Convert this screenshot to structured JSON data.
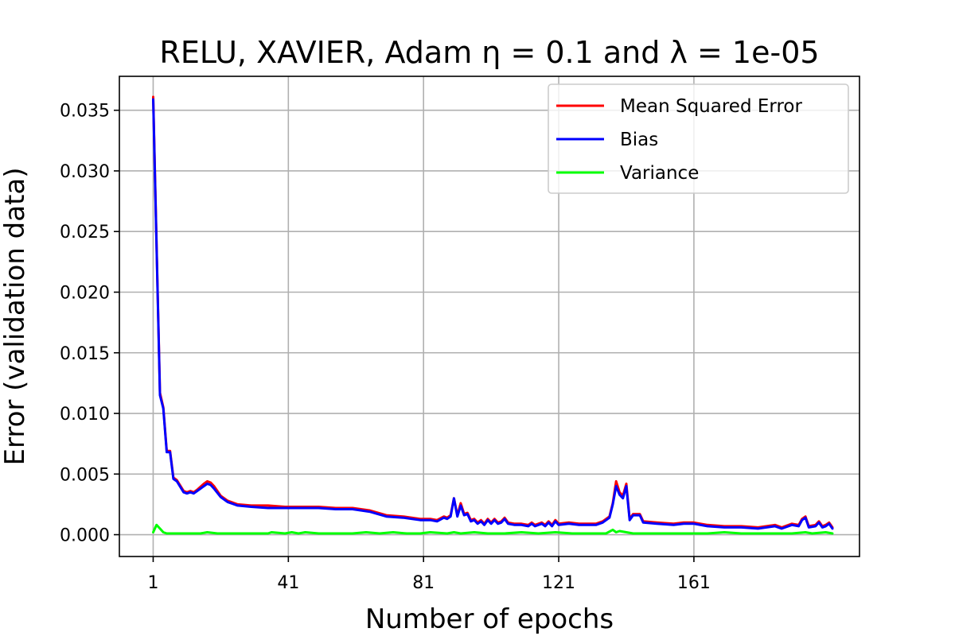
{
  "chart_data": {
    "type": "line",
    "title": "RELU, XAVIER, Adam η = 0.1 and λ = 1e-05",
    "xlabel": "Number of epochs",
    "ylabel": "Error (validation data)",
    "xlim": [
      -9,
      210
    ],
    "ylim": [
      -0.0018,
      0.0378
    ],
    "xticks": [
      1,
      41,
      81,
      121,
      161
    ],
    "yticks": [
      0.0,
      0.005,
      0.01,
      0.015,
      0.02,
      0.025,
      0.03,
      0.035
    ],
    "ytick_labels": [
      "0.000",
      "0.005",
      "0.010",
      "0.015",
      "0.020",
      "0.025",
      "0.030",
      "0.035"
    ],
    "grid": true,
    "legend": "top-right",
    "series": [
      {
        "name": "Mean Squared Error",
        "color": "#ff0000",
        "points": [
          [
            1,
            0.0361
          ],
          [
            3,
            0.0117
          ],
          [
            4,
            0.0105
          ],
          [
            5,
            0.0069
          ],
          [
            6,
            0.0069
          ],
          [
            7,
            0.0047
          ],
          [
            8,
            0.0045
          ],
          [
            10,
            0.0036
          ],
          [
            11,
            0.0035
          ],
          [
            12,
            0.0036
          ],
          [
            13,
            0.0035
          ],
          [
            14,
            0.0037
          ],
          [
            16,
            0.0042
          ],
          [
            17,
            0.0044
          ],
          [
            18,
            0.0043
          ],
          [
            19,
            0.004
          ],
          [
            21,
            0.0032
          ],
          [
            23,
            0.0028
          ],
          [
            26,
            0.0025
          ],
          [
            30,
            0.0024
          ],
          [
            35,
            0.0024
          ],
          [
            40,
            0.0023
          ],
          [
            45,
            0.0023
          ],
          [
            50,
            0.0023
          ],
          [
            55,
            0.0022
          ],
          [
            60,
            0.0022
          ],
          [
            65,
            0.002
          ],
          [
            70,
            0.0016
          ],
          [
            75,
            0.0015
          ],
          [
            80,
            0.0013
          ],
          [
            83,
            0.0013
          ],
          [
            85,
            0.0012
          ],
          [
            87,
            0.0015
          ],
          [
            88,
            0.0014
          ],
          [
            89,
            0.0016
          ],
          [
            90,
            0.003
          ],
          [
            91,
            0.0016
          ],
          [
            92,
            0.0026
          ],
          [
            93,
            0.0017
          ],
          [
            94,
            0.0018
          ],
          [
            95,
            0.0012
          ],
          [
            96,
            0.0013
          ],
          [
            97,
            0.001
          ],
          [
            98,
            0.0012
          ],
          [
            99,
            0.0009
          ],
          [
            100,
            0.0013
          ],
          [
            101,
            0.001
          ],
          [
            102,
            0.0013
          ],
          [
            103,
            0.001
          ],
          [
            104,
            0.0011
          ],
          [
            105,
            0.0014
          ],
          [
            106,
            0.001
          ],
          [
            108,
            0.0009
          ],
          [
            110,
            0.0009
          ],
          [
            112,
            0.0008
          ],
          [
            113,
            0.001
          ],
          [
            114,
            0.0008
          ],
          [
            116,
            0.001
          ],
          [
            117,
            0.0008
          ],
          [
            118,
            0.0011
          ],
          [
            119,
            0.0008
          ],
          [
            120,
            0.0012
          ],
          [
            121,
            0.0009
          ],
          [
            124,
            0.001
          ],
          [
            127,
            0.0009
          ],
          [
            130,
            0.0009
          ],
          [
            132,
            0.0009
          ],
          [
            134,
            0.0011
          ],
          [
            136,
            0.0015
          ],
          [
            137,
            0.0026
          ],
          [
            138,
            0.0044
          ],
          [
            139,
            0.0035
          ],
          [
            140,
            0.0032
          ],
          [
            141,
            0.0042
          ],
          [
            142,
            0.0013
          ],
          [
            143,
            0.0017
          ],
          [
            145,
            0.0017
          ],
          [
            146,
            0.0011
          ],
          [
            150,
            0.001
          ],
          [
            155,
            0.0009
          ],
          [
            158,
            0.001
          ],
          [
            161,
            0.001
          ],
          [
            165,
            0.0008
          ],
          [
            170,
            0.0007
          ],
          [
            175,
            0.0007
          ],
          [
            180,
            0.0006
          ],
          [
            185,
            0.0008
          ],
          [
            187,
            0.0006
          ],
          [
            190,
            0.0009
          ],
          [
            192,
            0.0008
          ],
          [
            193,
            0.0013
          ],
          [
            194,
            0.0015
          ],
          [
            195,
            0.0007
          ],
          [
            197,
            0.0008
          ],
          [
            198,
            0.0011
          ],
          [
            199,
            0.0007
          ],
          [
            200,
            0.0008
          ],
          [
            201,
            0.001
          ],
          [
            202,
            0.0006
          ]
        ]
      },
      {
        "name": "Bias",
        "color": "#0000ff",
        "points": [
          [
            1,
            0.0359
          ],
          [
            3,
            0.0115
          ],
          [
            4,
            0.0104
          ],
          [
            5,
            0.0068
          ],
          [
            6,
            0.0068
          ],
          [
            7,
            0.0046
          ],
          [
            8,
            0.0044
          ],
          [
            10,
            0.0035
          ],
          [
            11,
            0.0034
          ],
          [
            12,
            0.0035
          ],
          [
            13,
            0.0034
          ],
          [
            14,
            0.0036
          ],
          [
            16,
            0.004
          ],
          [
            17,
            0.0042
          ],
          [
            18,
            0.0041
          ],
          [
            19,
            0.0038
          ],
          [
            21,
            0.0031
          ],
          [
            23,
            0.0027
          ],
          [
            26,
            0.0024
          ],
          [
            30,
            0.0023
          ],
          [
            35,
            0.0022
          ],
          [
            40,
            0.0022
          ],
          [
            45,
            0.0022
          ],
          [
            50,
            0.0022
          ],
          [
            55,
            0.0021
          ],
          [
            60,
            0.0021
          ],
          [
            65,
            0.0019
          ],
          [
            70,
            0.0015
          ],
          [
            75,
            0.0014
          ],
          [
            80,
            0.0012
          ],
          [
            83,
            0.0012
          ],
          [
            85,
            0.0011
          ],
          [
            87,
            0.0014
          ],
          [
            88,
            0.0013
          ],
          [
            89,
            0.0015
          ],
          [
            90,
            0.003
          ],
          [
            91,
            0.0015
          ],
          [
            92,
            0.0024
          ],
          [
            93,
            0.0016
          ],
          [
            94,
            0.0017
          ],
          [
            95,
            0.0011
          ],
          [
            96,
            0.0012
          ],
          [
            97,
            0.0009
          ],
          [
            98,
            0.0011
          ],
          [
            99,
            0.0008
          ],
          [
            100,
            0.0012
          ],
          [
            101,
            0.0009
          ],
          [
            102,
            0.0012
          ],
          [
            103,
            0.0009
          ],
          [
            104,
            0.001
          ],
          [
            105,
            0.0013
          ],
          [
            106,
            0.0009
          ],
          [
            108,
            0.0008
          ],
          [
            110,
            0.0008
          ],
          [
            112,
            0.0007
          ],
          [
            113,
            0.0009
          ],
          [
            114,
            0.0007
          ],
          [
            116,
            0.0009
          ],
          [
            117,
            0.0007
          ],
          [
            118,
            0.001
          ],
          [
            119,
            0.0007
          ],
          [
            120,
            0.0011
          ],
          [
            121,
            0.0008
          ],
          [
            124,
            0.0009
          ],
          [
            127,
            0.0008
          ],
          [
            130,
            0.0008
          ],
          [
            132,
            0.0008
          ],
          [
            134,
            0.001
          ],
          [
            136,
            0.0014
          ],
          [
            137,
            0.0025
          ],
          [
            138,
            0.004
          ],
          [
            139,
            0.0033
          ],
          [
            140,
            0.003
          ],
          [
            141,
            0.004
          ],
          [
            142,
            0.0012
          ],
          [
            143,
            0.0016
          ],
          [
            145,
            0.0016
          ],
          [
            146,
            0.001
          ],
          [
            150,
            0.0009
          ],
          [
            155,
            0.0008
          ],
          [
            158,
            0.0009
          ],
          [
            161,
            0.0009
          ],
          [
            165,
            0.0007
          ],
          [
            170,
            0.0006
          ],
          [
            175,
            0.0006
          ],
          [
            180,
            0.0005
          ],
          [
            185,
            0.0007
          ],
          [
            187,
            0.0005
          ],
          [
            190,
            0.0008
          ],
          [
            192,
            0.0007
          ],
          [
            193,
            0.0012
          ],
          [
            194,
            0.0014
          ],
          [
            195,
            0.0006
          ],
          [
            197,
            0.0007
          ],
          [
            198,
            0.001
          ],
          [
            199,
            0.0006
          ],
          [
            200,
            0.0007
          ],
          [
            201,
            0.0009
          ],
          [
            202,
            0.0005
          ]
        ]
      },
      {
        "name": "Variance",
        "color": "#00ff00",
        "points": [
          [
            1,
            0.0002
          ],
          [
            2,
            0.0008
          ],
          [
            3,
            0.0005
          ],
          [
            4,
            0.0002
          ],
          [
            5,
            0.0001
          ],
          [
            7,
            0.0001
          ],
          [
            10,
            0.0001
          ],
          [
            13,
            0.0001
          ],
          [
            15,
            0.0001
          ],
          [
            17,
            0.0002
          ],
          [
            20,
            0.0001
          ],
          [
            25,
            0.0001
          ],
          [
            30,
            0.0001
          ],
          [
            35,
            0.0001
          ],
          [
            36,
            0.0002
          ],
          [
            40,
            0.0001
          ],
          [
            42,
            0.0002
          ],
          [
            44,
            0.0001
          ],
          [
            46,
            0.0002
          ],
          [
            50,
            0.0001
          ],
          [
            55,
            0.0001
          ],
          [
            60,
            0.0001
          ],
          [
            64,
            0.0002
          ],
          [
            68,
            0.0001
          ],
          [
            72,
            0.0002
          ],
          [
            76,
            0.0001
          ],
          [
            80,
            0.0001
          ],
          [
            83,
            0.0002
          ],
          [
            88,
            0.0001
          ],
          [
            90,
            0.0002
          ],
          [
            92,
            0.0001
          ],
          [
            96,
            0.0002
          ],
          [
            100,
            0.0001
          ],
          [
            105,
            0.0001
          ],
          [
            110,
            0.0002
          ],
          [
            115,
            0.0001
          ],
          [
            120,
            0.0002
          ],
          [
            125,
            0.0001
          ],
          [
            130,
            0.0001
          ],
          [
            135,
            0.0001
          ],
          [
            137,
            0.0004
          ],
          [
            138,
            0.0002
          ],
          [
            139,
            0.0003
          ],
          [
            141,
            0.0002
          ],
          [
            143,
            0.0001
          ],
          [
            150,
            0.0001
          ],
          [
            155,
            0.0001
          ],
          [
            160,
            0.0001
          ],
          [
            165,
            0.0001
          ],
          [
            170,
            0.0002
          ],
          [
            175,
            0.0001
          ],
          [
            180,
            0.0001
          ],
          [
            185,
            0.0001
          ],
          [
            190,
            0.0001
          ],
          [
            194,
            0.0002
          ],
          [
            196,
            0.0001
          ],
          [
            200,
            0.0002
          ],
          [
            202,
            0.0001
          ]
        ]
      }
    ]
  }
}
